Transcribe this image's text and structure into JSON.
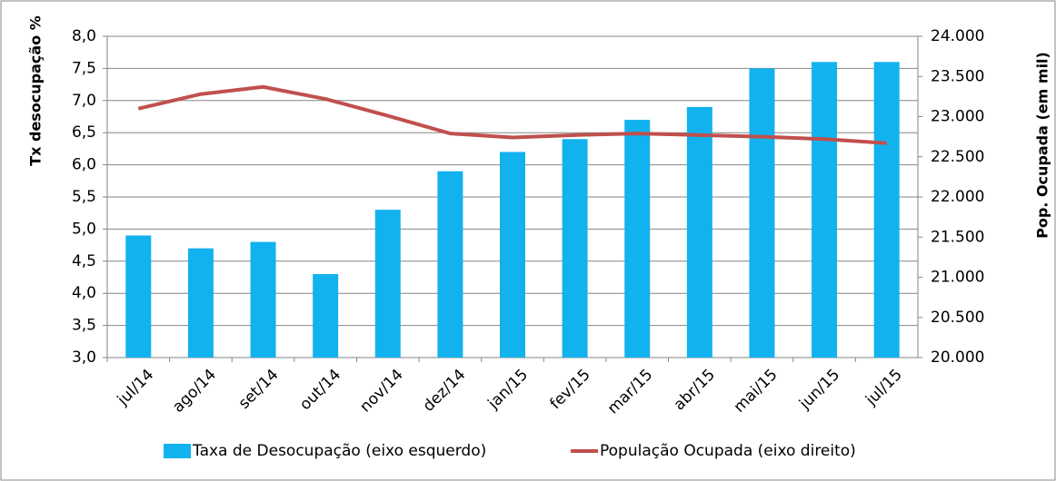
{
  "chart_data": {
    "type": "bar_line",
    "y_label": "Tx desocupação %",
    "y2_label": "Pop. Ocupada (em mil)",
    "categories": [
      "jul/14",
      "ago/14",
      "set/14",
      "out/14",
      "nov/14",
      "dez/14",
      "jan/15",
      "fev/15",
      "mar/15",
      "abr/15",
      "mai/15",
      "jun/15",
      "jul/15"
    ],
    "series": [
      {
        "name": "Taxa de Desocupação (eixo esquerdo)",
        "type": "bar",
        "color": "#12b2ee",
        "values": [
          4.9,
          4.7,
          4.8,
          4.3,
          5.3,
          5.9,
          6.2,
          6.4,
          6.7,
          6.9,
          7.5,
          7.6,
          7.6
        ]
      },
      {
        "name": "População Ocupada (eixo direito)",
        "type": "line",
        "axis": "y2",
        "color": "#c0504d",
        "values": [
          23100,
          23280,
          23370,
          23220,
          23010,
          22790,
          22740,
          22770,
          22790,
          22770,
          22750,
          22720,
          22670
        ]
      }
    ],
    "ylim": [
      3,
      8
    ],
    "yticks": [
      {
        "value": 3,
        "label": "3,0"
      },
      {
        "value": 3.5,
        "label": "3,5"
      },
      {
        "value": 4,
        "label": "4,0"
      },
      {
        "value": 4.5,
        "label": "4,5"
      },
      {
        "value": 5,
        "label": "5,0"
      },
      {
        "value": 5.5,
        "label": "5,5"
      },
      {
        "value": 6,
        "label": "6,0"
      },
      {
        "value": 6.5,
        "label": "6,5"
      },
      {
        "value": 7,
        "label": "7,0"
      },
      {
        "value": 7.5,
        "label": "7,5"
      },
      {
        "value": 8,
        "label": "8,0"
      }
    ],
    "y2lim": [
      20000,
      24000
    ],
    "y2ticks": [
      {
        "value": 20000,
        "label": "20.000"
      },
      {
        "value": 20500,
        "label": "20.500"
      },
      {
        "value": 21000,
        "label": "21.000"
      },
      {
        "value": 21500,
        "label": "21.500"
      },
      {
        "value": 22000,
        "label": "22.000"
      },
      {
        "value": 22500,
        "label": "22.500"
      },
      {
        "value": 23000,
        "label": "23.000"
      },
      {
        "value": 23500,
        "label": "23.500"
      },
      {
        "value": 24000,
        "label": "24.000"
      }
    ],
    "grid": true
  }
}
